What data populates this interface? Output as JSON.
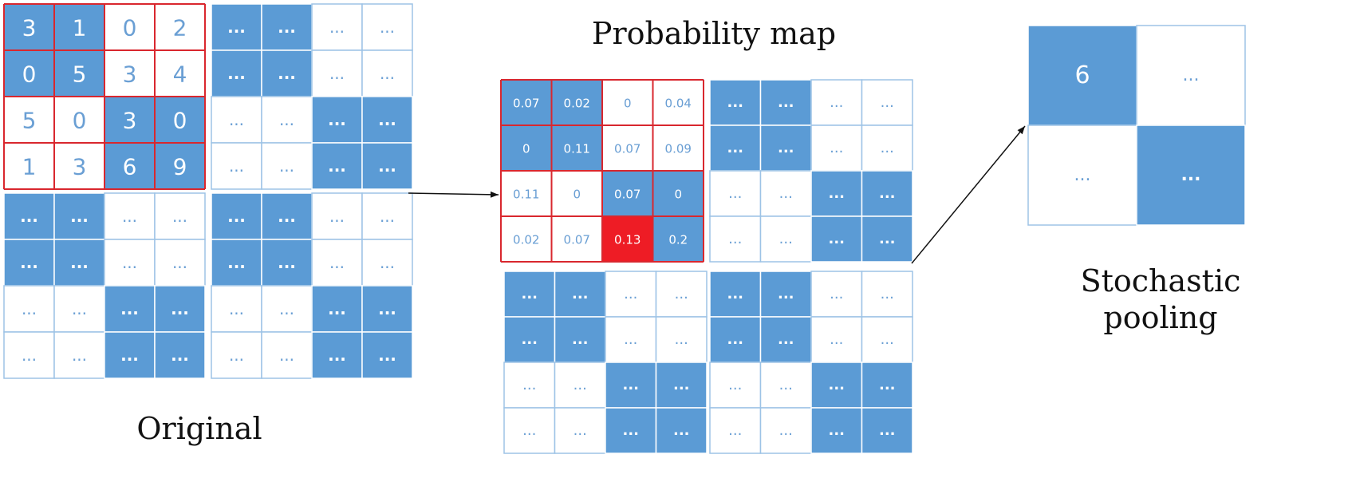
{
  "captions": {
    "original": "Original",
    "probability_map": "Probability map",
    "stochastic_pooling": "Stochastic\npooling"
  },
  "colors": {
    "blue_fill": "#5b9bd5",
    "blue_border": "#9dc3e6",
    "blue_text": "#6a9fd4",
    "highlight_border": "#d9272e",
    "selected_fill": "#ee1c25",
    "arrow": "#111111"
  },
  "pattern": [
    [
      1,
      1,
      0,
      0
    ],
    [
      1,
      1,
      0,
      0
    ],
    [
      0,
      0,
      1,
      1
    ],
    [
      0,
      0,
      1,
      1
    ]
  ],
  "placeholder": "...",
  "original": {
    "values": [
      [
        "3",
        "1",
        "0",
        "2"
      ],
      [
        "0",
        "5",
        "3",
        "4"
      ],
      [
        "5",
        "0",
        "3",
        "0"
      ],
      [
        "1",
        "3",
        "6",
        "9"
      ]
    ]
  },
  "probability_map": {
    "values": [
      [
        "0.07",
        "0.02",
        "0",
        "0.04"
      ],
      [
        "0",
        "0.11",
        "0.07",
        "0.09"
      ],
      [
        "0.11",
        "0",
        "0.07",
        "0"
      ],
      [
        "0.02",
        "0.07",
        "0.13",
        "0.2"
      ]
    ],
    "selected_cell": [
      3,
      2
    ]
  },
  "stochastic_pooling": {
    "values": [
      [
        "6",
        "..."
      ],
      [
        "...",
        "..."
      ]
    ]
  }
}
